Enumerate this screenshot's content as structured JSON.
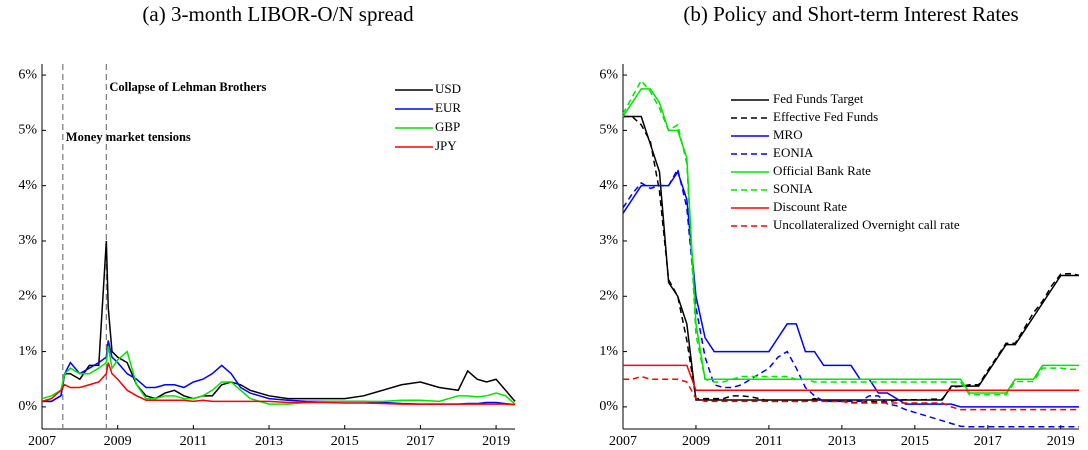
{
  "chart_data": [
    {
      "type": "line",
      "title": "(a) 3-month LIBOR-O/N spread",
      "x": [
        2007,
        2007.25,
        2007.5,
        2007.6,
        2007.75,
        2008,
        2008.25,
        2008.5,
        2008.7,
        2008.75,
        2008.85,
        2009,
        2009.25,
        2009.5,
        2009.75,
        2010,
        2010.25,
        2010.5,
        2010.75,
        2011,
        2011.25,
        2011.5,
        2011.75,
        2012,
        2012.25,
        2012.5,
        2012.75,
        2013,
        2013.5,
        2014,
        2014.5,
        2015,
        2015.5,
        2016,
        2016.5,
        2017,
        2017.5,
        2018,
        2018.25,
        2018.5,
        2018.75,
        2019,
        2019.25,
        2019.5
      ],
      "series": [
        {
          "name": "USD",
          "color": "#000000",
          "values": [
            0.1,
            0.1,
            0.2,
            0.6,
            0.6,
            0.5,
            0.75,
            0.75,
            3.0,
            1.8,
            1.0,
            0.9,
            0.8,
            0.4,
            0.2,
            0.15,
            0.25,
            0.3,
            0.2,
            0.15,
            0.2,
            0.2,
            0.4,
            0.45,
            0.4,
            0.3,
            0.25,
            0.2,
            0.15,
            0.15,
            0.15,
            0.15,
            0.2,
            0.3,
            0.4,
            0.45,
            0.35,
            0.3,
            0.65,
            0.5,
            0.45,
            0.5,
            0.3,
            0.1
          ]
        },
        {
          "name": "EUR",
          "color": "#0000ff",
          "values": [
            0.1,
            0.1,
            0.2,
            0.6,
            0.8,
            0.6,
            0.7,
            0.8,
            0.9,
            1.2,
            0.9,
            0.8,
            0.6,
            0.5,
            0.35,
            0.35,
            0.4,
            0.4,
            0.35,
            0.45,
            0.5,
            0.6,
            0.75,
            0.6,
            0.35,
            0.25,
            0.2,
            0.15,
            0.12,
            0.1,
            0.1,
            0.1,
            0.1,
            0.08,
            0.06,
            0.05,
            0.05,
            0.05,
            0.06,
            0.06,
            0.08,
            0.08,
            0.06,
            0.04
          ]
        },
        {
          "name": "GBP",
          "color": "#00e600",
          "values": [
            0.15,
            0.2,
            0.3,
            0.6,
            0.7,
            0.6,
            0.6,
            0.7,
            0.8,
            1.1,
            0.7,
            0.85,
            1.0,
            0.4,
            0.15,
            0.15,
            0.2,
            0.2,
            0.15,
            0.15,
            0.2,
            0.3,
            0.45,
            0.45,
            0.3,
            0.15,
            0.1,
            0.05,
            0.05,
            0.08,
            0.1,
            0.1,
            0.1,
            0.1,
            0.12,
            0.12,
            0.1,
            0.2,
            0.2,
            0.18,
            0.2,
            0.25,
            0.2,
            0.05
          ]
        },
        {
          "name": "JPY",
          "color": "#ff0000",
          "values": [
            0.1,
            0.15,
            0.3,
            0.4,
            0.35,
            0.35,
            0.4,
            0.45,
            0.6,
            0.8,
            0.6,
            0.5,
            0.3,
            0.2,
            0.12,
            0.12,
            0.12,
            0.12,
            0.12,
            0.1,
            0.12,
            0.1,
            0.1,
            0.1,
            0.1,
            0.1,
            0.1,
            0.1,
            0.08,
            0.08,
            0.08,
            0.07,
            0.07,
            0.06,
            0.05,
            0.05,
            0.05,
            0.05,
            0.05,
            0.05,
            0.05,
            0.05,
            0.05,
            0.04
          ]
        }
      ],
      "annotations": [
        {
          "text": "Money market tensions",
          "x": 2007.55
        },
        {
          "text": "Collapse of Lehman Brothers",
          "x": 2008.7
        }
      ],
      "xlim": [
        2007,
        2019.5
      ],
      "xticks": [
        2007,
        2009,
        2011,
        2013,
        2015,
        2017,
        2019
      ],
      "ylim": [
        -0.4,
        6.2
      ],
      "yticks": [
        {
          "value": 0,
          "label": "0%"
        },
        {
          "value": 1,
          "label": "1%"
        },
        {
          "value": 2,
          "label": "2%"
        },
        {
          "value": 3,
          "label": "3%"
        },
        {
          "value": 4,
          "label": "4%"
        },
        {
          "value": 5,
          "label": "5%"
        },
        {
          "value": 6,
          "label": "6%"
        }
      ],
      "legend": "upper right"
    },
    {
      "type": "line",
      "title": "(b) Policy and Short-term Interest Rates",
      "x": [
        2007,
        2007.25,
        2007.5,
        2007.75,
        2008,
        2008.25,
        2008.5,
        2008.75,
        2009,
        2009.25,
        2009.5,
        2009.75,
        2010,
        2010.25,
        2010.5,
        2010.75,
        2011,
        2011.25,
        2011.5,
        2011.75,
        2012,
        2012.25,
        2012.5,
        2012.75,
        2013,
        2013.25,
        2013.5,
        2013.75,
        2014,
        2014.25,
        2014.5,
        2014.75,
        2015,
        2015.25,
        2015.5,
        2015.75,
        2016,
        2016.25,
        2016.5,
        2016.75,
        2017,
        2017.25,
        2017.5,
        2017.75,
        2018,
        2018.25,
        2018.5,
        2018.75,
        2019,
        2019.25,
        2019.5
      ],
      "series": [
        {
          "name": "Fed Funds Target",
          "color": "#000000",
          "dashed": false,
          "values": [
            5.25,
            5.25,
            5.25,
            4.75,
            4.25,
            2.25,
            2.0,
            1.5,
            0.125,
            0.125,
            0.125,
            0.125,
            0.125,
            0.125,
            0.125,
            0.125,
            0.125,
            0.125,
            0.125,
            0.125,
            0.125,
            0.125,
            0.125,
            0.125,
            0.125,
            0.125,
            0.125,
            0.125,
            0.125,
            0.125,
            0.125,
            0.125,
            0.125,
            0.125,
            0.125,
            0.125,
            0.375,
            0.375,
            0.375,
            0.375,
            0.625,
            0.875,
            1.125,
            1.125,
            1.375,
            1.625,
            1.875,
            2.125,
            2.375,
            2.375,
            2.375
          ]
        },
        {
          "name": "Effective Fed Funds",
          "color": "#000000",
          "dashed": true,
          "values": [
            5.25,
            5.25,
            5.1,
            4.8,
            3.9,
            2.3,
            2.0,
            1.2,
            0.15,
            0.15,
            0.15,
            0.15,
            0.2,
            0.2,
            0.18,
            0.15,
            0.1,
            0.1,
            0.1,
            0.1,
            0.1,
            0.15,
            0.1,
            0.1,
            0.1,
            0.08,
            0.08,
            0.1,
            0.09,
            0.09,
            0.12,
            0.13,
            0.13,
            0.13,
            0.14,
            0.14,
            0.36,
            0.37,
            0.4,
            0.4,
            0.66,
            0.9,
            1.15,
            1.15,
            1.42,
            1.7,
            1.91,
            2.19,
            2.4,
            2.41,
            2.38
          ]
        },
        {
          "name": "MRO",
          "color": "#0000ff",
          "dashed": false,
          "values": [
            3.5,
            3.75,
            4.0,
            4.0,
            4.0,
            4.0,
            4.25,
            3.75,
            2.0,
            1.25,
            1.0,
            1.0,
            1.0,
            1.0,
            1.0,
            1.0,
            1.0,
            1.25,
            1.5,
            1.5,
            1.0,
            1.0,
            0.75,
            0.75,
            0.75,
            0.75,
            0.5,
            0.5,
            0.25,
            0.25,
            0.15,
            0.05,
            0.05,
            0.05,
            0.05,
            0.05,
            0.05,
            0,
            0,
            0,
            0,
            0,
            0,
            0,
            0,
            0,
            0,
            0,
            0,
            0,
            0
          ]
        },
        {
          "name": "EONIA",
          "color": "#0000ff",
          "dashed": true,
          "values": [
            3.6,
            3.85,
            4.05,
            3.95,
            4.0,
            4.0,
            4.3,
            3.6,
            1.8,
            0.9,
            0.4,
            0.35,
            0.35,
            0.4,
            0.5,
            0.6,
            0.7,
            0.9,
            1.0,
            0.7,
            0.35,
            0.2,
            0.1,
            0.1,
            0.1,
            0.1,
            0.1,
            0.2,
            0.2,
            0.05,
            0.02,
            -0.05,
            -0.1,
            -0.15,
            -0.2,
            -0.25,
            -0.3,
            -0.35,
            -0.36,
            -0.36,
            -0.36,
            -0.36,
            -0.36,
            -0.36,
            -0.36,
            -0.36,
            -0.36,
            -0.36,
            -0.36,
            -0.36,
            -0.36
          ]
        },
        {
          "name": "Official Bank Rate",
          "color": "#00e600",
          "dashed": false,
          "values": [
            5.25,
            5.5,
            5.75,
            5.75,
            5.5,
            5.0,
            5.0,
            4.5,
            1.5,
            0.5,
            0.5,
            0.5,
            0.5,
            0.5,
            0.5,
            0.5,
            0.5,
            0.5,
            0.5,
            0.5,
            0.5,
            0.5,
            0.5,
            0.5,
            0.5,
            0.5,
            0.5,
            0.5,
            0.5,
            0.5,
            0.5,
            0.5,
            0.5,
            0.5,
            0.5,
            0.5,
            0.5,
            0.5,
            0.25,
            0.25,
            0.25,
            0.25,
            0.25,
            0.5,
            0.5,
            0.5,
            0.75,
            0.75,
            0.75,
            0.75,
            0.75
          ]
        },
        {
          "name": "SONIA",
          "color": "#00e600",
          "dashed": true,
          "values": [
            5.3,
            5.6,
            5.9,
            5.7,
            5.4,
            5.0,
            5.1,
            4.4,
            1.3,
            0.5,
            0.45,
            0.45,
            0.5,
            0.55,
            0.55,
            0.55,
            0.55,
            0.55,
            0.55,
            0.5,
            0.5,
            0.45,
            0.45,
            0.45,
            0.45,
            0.45,
            0.45,
            0.45,
            0.45,
            0.45,
            0.45,
            0.45,
            0.45,
            0.45,
            0.45,
            0.45,
            0.45,
            0.45,
            0.22,
            0.22,
            0.22,
            0.22,
            0.22,
            0.46,
            0.46,
            0.46,
            0.7,
            0.7,
            0.7,
            0.68,
            0.68
          ]
        },
        {
          "name": "Discount Rate",
          "color": "#ff0000",
          "dashed": false,
          "values": [
            0.75,
            0.75,
            0.75,
            0.75,
            0.75,
            0.75,
            0.75,
            0.75,
            0.3,
            0.3,
            0.3,
            0.3,
            0.3,
            0.3,
            0.3,
            0.3,
            0.3,
            0.3,
            0.3,
            0.3,
            0.3,
            0.3,
            0.3,
            0.3,
            0.3,
            0.3,
            0.3,
            0.3,
            0.3,
            0.3,
            0.3,
            0.3,
            0.3,
            0.3,
            0.3,
            0.3,
            0.3,
            0.3,
            0.3,
            0.3,
            0.3,
            0.3,
            0.3,
            0.3,
            0.3,
            0.3,
            0.3,
            0.3,
            0.3,
            0.3,
            0.3
          ]
        },
        {
          "name": "Uncollateralized Overnight call rate",
          "color": "#ff0000",
          "dashed": true,
          "values": [
            0.5,
            0.5,
            0.55,
            0.5,
            0.5,
            0.5,
            0.5,
            0.45,
            0.15,
            0.1,
            0.1,
            0.1,
            0.1,
            0.1,
            0.1,
            0.1,
            0.1,
            0.1,
            0.1,
            0.1,
            0.1,
            0.1,
            0.1,
            0.1,
            0.1,
            0.07,
            0.07,
            0.07,
            0.07,
            0.07,
            0.07,
            0.07,
            0.07,
            0.07,
            0.07,
            0.07,
            0.0,
            -0.05,
            -0.05,
            -0.05,
            -0.05,
            -0.05,
            -0.05,
            -0.05,
            -0.05,
            -0.05,
            -0.05,
            -0.05,
            -0.05,
            -0.05,
            -0.05
          ]
        }
      ],
      "xlim": [
        2007,
        2019.5
      ],
      "xticks": [
        2007,
        2009,
        2011,
        2013,
        2015,
        2017,
        2019
      ],
      "ylim": [
        -0.4,
        6.2
      ],
      "yticks": [
        {
          "value": 0,
          "label": "0%"
        },
        {
          "value": 1,
          "label": "1%"
        },
        {
          "value": 2,
          "label": "2%"
        },
        {
          "value": 3,
          "label": "3%"
        },
        {
          "value": 4,
          "label": "4%"
        },
        {
          "value": 5,
          "label": "5%"
        },
        {
          "value": 6,
          "label": "6%"
        }
      ],
      "legend": "upper left"
    }
  ]
}
